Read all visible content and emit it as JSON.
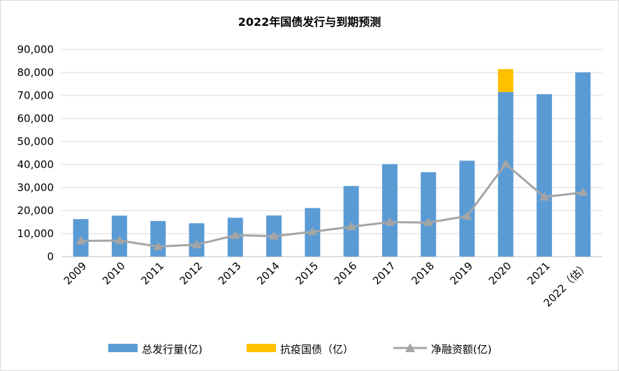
{
  "chart_data": {
    "type": "bar",
    "title": "2022年国债发行与到期预测",
    "categories": [
      "2009",
      "2010",
      "2011",
      "2012",
      "2013",
      "2014",
      "2015",
      "2016",
      "2017",
      "2018",
      "2019",
      "2020",
      "2021",
      "2022（估）"
    ],
    "series": [
      {
        "name": "总发行量(亿)",
        "kind": "bar",
        "color": "#5B9BD5",
        "values": [
          16300,
          17800,
          15500,
          14500,
          16900,
          17900,
          21100,
          30700,
          40200,
          36700,
          41700,
          71500,
          70600,
          80100
        ]
      },
      {
        "name": "抗疫国债（亿）",
        "kind": "bar-stacked",
        "color": "#FFC000",
        "values": [
          0,
          0,
          0,
          0,
          0,
          0,
          0,
          0,
          0,
          0,
          0,
          10000,
          0,
          0
        ]
      },
      {
        "name": "净融资额(亿)",
        "kind": "line",
        "color": "#A5A5A5",
        "values": [
          6800,
          7000,
          4400,
          5200,
          9300,
          8900,
          10800,
          13000,
          15000,
          14800,
          17600,
          40300,
          25900,
          27900
        ]
      }
    ],
    "ylim": [
      0,
      90000
    ],
    "yticks": [
      0,
      10000,
      20000,
      30000,
      40000,
      50000,
      60000,
      70000,
      80000,
      90000
    ],
    "ytick_labels": [
      "0",
      "10,000",
      "20,000",
      "30,000",
      "40,000",
      "50,000",
      "60,000",
      "70,000",
      "80,000",
      "90,000"
    ],
    "grid": true,
    "legend_position": "bottom"
  }
}
